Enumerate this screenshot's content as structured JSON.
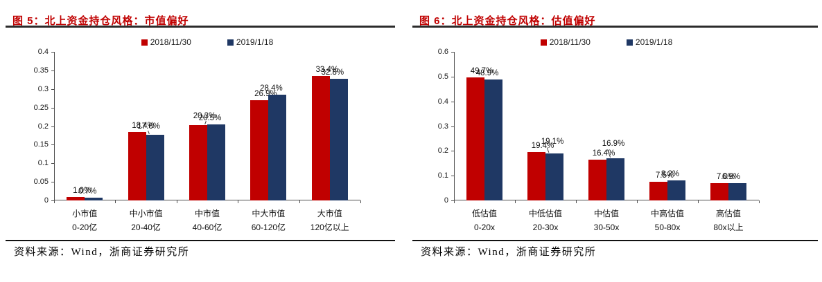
{
  "page": {
    "background": "#ffffff"
  },
  "accent_colors": {
    "title_red": "#c00000",
    "series_2018_red": "#c00000",
    "series_2019_navy": "#1f3864",
    "axis_gray": "#4d4d4d"
  },
  "chart_data": [
    {
      "type": "bar",
      "title": "图 5：北上资金持仓风格：市值偏好",
      "source_note": "资料来源：Wind，浙商证券研究所",
      "legend_position": "top",
      "grid": false,
      "ylim": [
        0,
        0.4
      ],
      "yticks": [
        "0",
        "0.05",
        "0.1",
        "0.15",
        "0.2",
        "0.25",
        "0.3",
        "0.35",
        "0.4"
      ],
      "categories": [
        {
          "name": "小市值",
          "range": "0-20亿"
        },
        {
          "name": "中小市值",
          "range": "20-40亿"
        },
        {
          "name": "中市值",
          "range": "40-60亿"
        },
        {
          "name": "中大市值",
          "range": "60-120亿"
        },
        {
          "name": "大市值",
          "range": "120亿以上"
        }
      ],
      "series": [
        {
          "name": "2018/11/30",
          "color": "#c00000",
          "values": [
            0.01,
            0.184,
            0.203,
            0.269,
            0.334
          ],
          "labels": [
            "1.0%",
            "18.4%",
            "20.3%",
            "26.9%",
            "33.4%"
          ]
        },
        {
          "name": "2019/1/18",
          "color": "#1f3864",
          "values": [
            0.007,
            0.176,
            0.205,
            0.284,
            0.328
          ],
          "labels": [
            "0.7%",
            "17.6%",
            "20.5%",
            "28.4%",
            "32.8%"
          ]
        }
      ]
    },
    {
      "type": "bar",
      "title": "图 6：北上资金持仓风格：估值偏好",
      "source_note": "资料来源：Wind，浙商证券研究所",
      "legend_position": "top",
      "grid": false,
      "ylim": [
        0,
        0.6
      ],
      "yticks": [
        "0",
        "0.1",
        "0.2",
        "0.3",
        "0.4",
        "0.5",
        "0.6"
      ],
      "categories": [
        {
          "name": "低估值",
          "range": "0-20x"
        },
        {
          "name": "中低估值",
          "range": "20-30x"
        },
        {
          "name": "中估值",
          "range": "30-50x"
        },
        {
          "name": "中高估值",
          "range": "50-80x"
        },
        {
          "name": "高估值",
          "range": "80x以上"
        }
      ],
      "series": [
        {
          "name": "2018/11/30",
          "color": "#c00000",
          "values": [
            0.497,
            0.194,
            0.164,
            0.075,
            0.07
          ],
          "labels": [
            "49.7%",
            "19.4%",
            "16.4%",
            "7.5%",
            "7.0%"
          ]
        },
        {
          "name": "2019/1/18",
          "color": "#1f3864",
          "values": [
            0.489,
            0.191,
            0.169,
            0.082,
            0.069
          ],
          "labels": [
            "48.9%",
            "19.1%",
            "16.9%",
            "8.2%",
            "6.9%"
          ]
        }
      ]
    }
  ]
}
